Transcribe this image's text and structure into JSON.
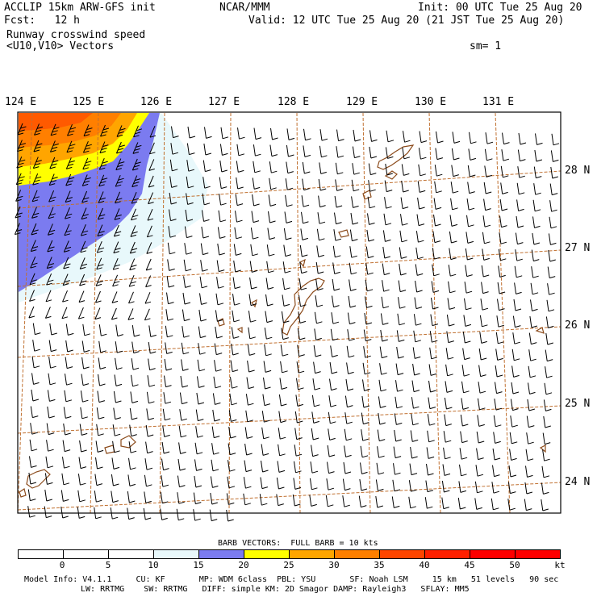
{
  "header": {
    "model_line": "ACCLIP 15km ARW-GFS init",
    "forecast_line": "Fcst:   12 h",
    "field_name": "Runway crosswind speed",
    "vector_name": "<U10,V10> Vectors",
    "institution": "NCAR/MMM",
    "init_time": "Init: 00 UTC Tue 25 Aug 20",
    "valid_time": "Valid: 12 UTC Tue 25 Aug 20 (21 JST Tue 25 Aug 20)",
    "smoothing": "sm= 1"
  },
  "map": {
    "lon_labels": [
      "124 E",
      "125 E",
      "126 E",
      "127 E",
      "128 E",
      "129 E",
      "130 E",
      "131 E"
    ],
    "lat_labels": [
      "28 N",
      "27 N",
      "26 N",
      "25 N",
      "24 N"
    ],
    "barb_color": "#000000",
    "grid_color": "#c07030",
    "coast_color": "#8b4a1a"
  },
  "legend": {
    "barb_note": "BARB VECTORS:  FULL BARB = 10 kts",
    "tick_labels": [
      "0",
      "5",
      "10",
      "15",
      "20",
      "25",
      "30",
      "35",
      "40",
      "45",
      "50"
    ],
    "unit": "kt",
    "colors": [
      "#ffffff",
      "#ffffff",
      "#ffffff",
      "#e8f8fb",
      "#7b7bf0",
      "#ffff00",
      "#ffa500",
      "#ff7f00",
      "#ff4500",
      "#ff2000",
      "#ff0000",
      "#ff0000"
    ]
  },
  "footer": {
    "line1": "Model Info: V4.1.1     CU: KF       MP: WDM 6class  PBL: YSU       SF: Noah LSM     15 km   51 levels   90 sec",
    "line2": "LW: RRTMG    SW: RRTMG   DIFF: simple KM: 2D Smagor DAMP: Rayleigh3   SFLAY: MM5"
  }
}
